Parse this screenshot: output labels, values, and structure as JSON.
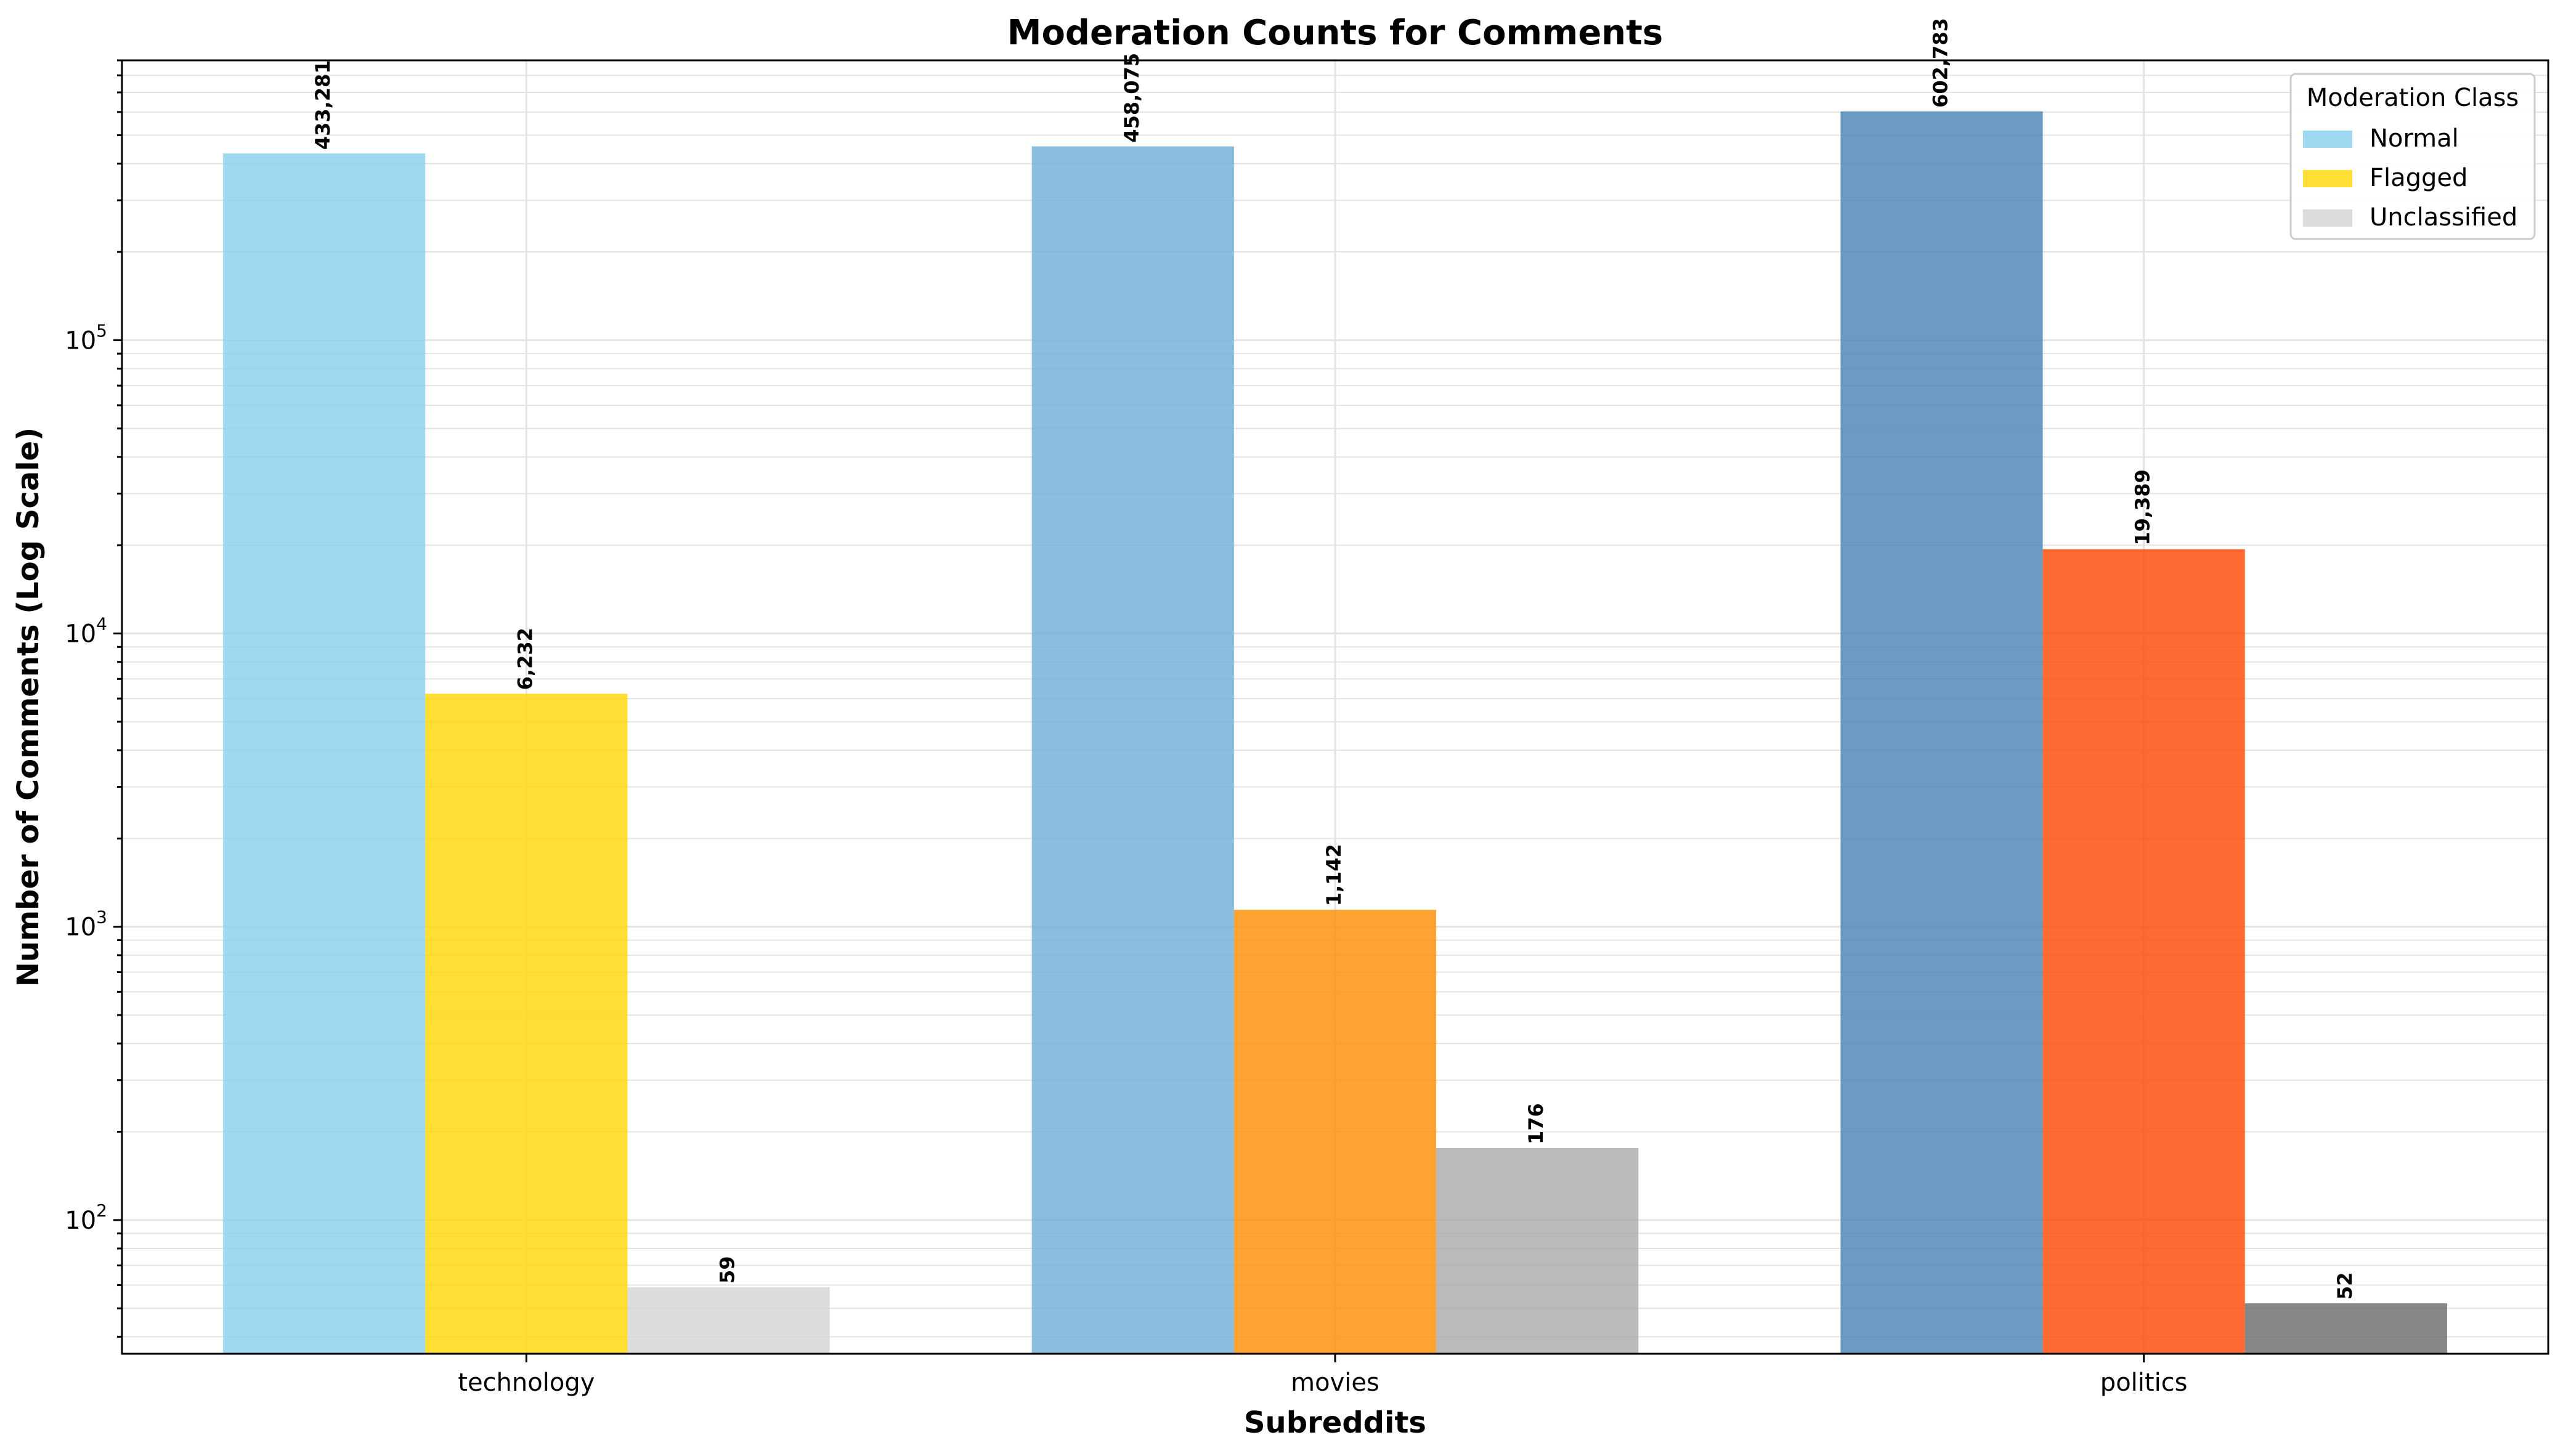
{
  "chart_data": {
    "type": "bar",
    "title": "Moderation Counts for Comments",
    "xlabel": "Subreddits",
    "ylabel": "Number of Comments (Log Scale)",
    "yscale": "log",
    "ylim": [
      35,
      900000
    ],
    "grid": true,
    "categories": [
      "technology",
      "movies",
      "politics"
    ],
    "series": [
      {
        "name": "Normal",
        "values": [
          433281,
          458075,
          602783
        ],
        "colors": [
          "#87ceeb",
          "#6baed6",
          "#4682b4"
        ],
        "labels": [
          "433,281",
          "458,075",
          "602,783"
        ]
      },
      {
        "name": "Flagged",
        "values": [
          6232,
          1142,
          19389
        ],
        "colors": [
          "#ffd700",
          "#ff8c00",
          "#ff4500"
        ],
        "labels": [
          "6,232",
          "1,142",
          "19,389"
        ]
      },
      {
        "name": "Unclassified",
        "values": [
          59,
          176,
          52
        ],
        "colors": [
          "#d3d3d3",
          "#a9a9a9",
          "#696969"
        ],
        "labels": [
          "59",
          "176",
          "52"
        ]
      }
    ],
    "y_ticks": [
      {
        "value": 100,
        "base": "10",
        "exp": "2"
      },
      {
        "value": 1000,
        "base": "10",
        "exp": "3"
      },
      {
        "value": 10000,
        "base": "10",
        "exp": "4"
      },
      {
        "value": 100000,
        "base": "10",
        "exp": "5"
      }
    ],
    "legend": {
      "title": "Moderation Class",
      "placement": "top-right",
      "entries": [
        {
          "label": "Normal",
          "color": "#87ceeb"
        },
        {
          "label": "Flagged",
          "color": "#ffd700"
        },
        {
          "label": "Unclassified",
          "color": "#d3d3d3"
        }
      ]
    }
  }
}
